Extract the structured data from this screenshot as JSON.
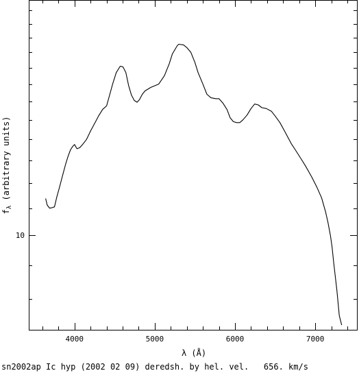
{
  "chart_data": {
    "type": "line",
    "title": "",
    "caption": "sn2002ap Ic hyp (2002 02 09) deredsh. by hel. vel.   656. km/s",
    "xlabel": "λ (Å)",
    "ylabel": "f_λ (arbitrary units)",
    "ylabel_main": "f",
    "ylabel_sub": "λ",
    "ylabel_rest": " (arbitrary units)",
    "xlim": [
      3430,
      7520
    ],
    "ylim": [
      7.18,
      22.83
    ],
    "yscale": "log",
    "xticks": [
      4000,
      5000,
      6000,
      7000
    ],
    "xtick_labels": [
      "4000",
      "5000",
      "6000",
      "7000"
    ],
    "yticks": [
      10
    ],
    "ytick_labels": [
      "10"
    ],
    "grid": false,
    "legend": "none",
    "series": [
      {
        "color": "#000000",
        "x": [
          3640,
          3660,
          3690,
          3720,
          3750,
          3780,
          3810,
          3850,
          3890,
          3920,
          3950,
          3975,
          4000,
          4030,
          4065,
          4100,
          4150,
          4200,
          4250,
          4300,
          4350,
          4400,
          4440,
          4475,
          4520,
          4570,
          4605,
          4640,
          4675,
          4710,
          4745,
          4780,
          4810,
          4845,
          4880,
          4950,
          5050,
          5120,
          5180,
          5220,
          5280,
          5300,
          5360,
          5400,
          5450,
          5500,
          5540,
          5600,
          5650,
          5700,
          5760,
          5800,
          5850,
          5900,
          5940,
          5980,
          6020,
          6060,
          6100,
          6150,
          6200,
          6245,
          6290,
          6335,
          6390,
          6455,
          6500,
          6560,
          6620,
          6700,
          6760,
          6820,
          6880,
          6920,
          6960,
          7020,
          7080,
          7130,
          7160,
          7190,
          7210,
          7230,
          7270,
          7300,
          7330
        ],
        "y": [
          11.38,
          11.12,
          11.0,
          11.02,
          11.05,
          11.45,
          11.8,
          12.32,
          12.85,
          13.2,
          13.5,
          13.65,
          13.75,
          13.55,
          13.6,
          13.75,
          14.0,
          14.42,
          14.8,
          15.2,
          15.55,
          15.75,
          16.4,
          17.0,
          17.7,
          18.1,
          18.05,
          17.7,
          16.9,
          16.35,
          16.05,
          15.95,
          16.1,
          16.4,
          16.6,
          16.8,
          17.0,
          17.5,
          18.25,
          18.9,
          19.45,
          19.55,
          19.5,
          19.32,
          19.0,
          18.35,
          17.7,
          17.0,
          16.4,
          16.2,
          16.15,
          16.15,
          15.9,
          15.55,
          15.1,
          14.9,
          14.85,
          14.85,
          15.0,
          15.25,
          15.6,
          15.85,
          15.8,
          15.65,
          15.6,
          15.45,
          15.2,
          14.85,
          14.4,
          13.8,
          13.45,
          13.1,
          12.75,
          12.5,
          12.25,
          11.85,
          11.4,
          10.85,
          10.45,
          9.98,
          9.6,
          9.1,
          8.25,
          7.55,
          7.3
        ]
      }
    ]
  }
}
